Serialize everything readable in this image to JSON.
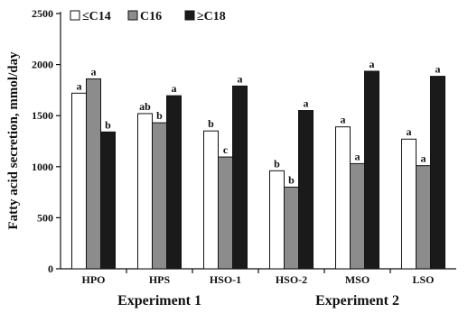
{
  "chart_data": {
    "type": "bar",
    "title": "",
    "ylabel": "Fatty acid secretion, mmol/day",
    "xlabel": "",
    "ylim": [
      0,
      2500
    ],
    "yticks": [
      0,
      500,
      1000,
      1500,
      2000,
      2500
    ],
    "categories": [
      "HPO",
      "HPS",
      "HSO-1",
      "HSO-2",
      "MSO",
      "LSO"
    ],
    "groups": [
      {
        "label": "Experiment 1",
        "categories": [
          "HPO",
          "HPS",
          "HSO-1"
        ]
      },
      {
        "label": "Experiment 2",
        "categories": [
          "HSO-2",
          "MSO",
          "LSO"
        ]
      }
    ],
    "legend_position": "top-left",
    "grid": false,
    "series": [
      {
        "name": "≤C14",
        "color": "#ffffff",
        "values": [
          1720,
          1520,
          1350,
          960,
          1390,
          1270
        ],
        "labels": [
          "a",
          "ab",
          "b",
          "b",
          "a",
          "a"
        ]
      },
      {
        "name": "C16",
        "color": "#8c8c8c",
        "values": [
          1860,
          1430,
          1095,
          800,
          1030,
          1010
        ],
        "labels": [
          "a",
          "b",
          "c",
          "b",
          "a",
          "a"
        ]
      },
      {
        "name": "≥C18",
        "color": "#1a1a1a",
        "values": [
          1340,
          1695,
          1790,
          1550,
          1935,
          1885
        ],
        "labels": [
          "b",
          "a",
          "a",
          "a",
          "a",
          "a"
        ]
      }
    ]
  }
}
